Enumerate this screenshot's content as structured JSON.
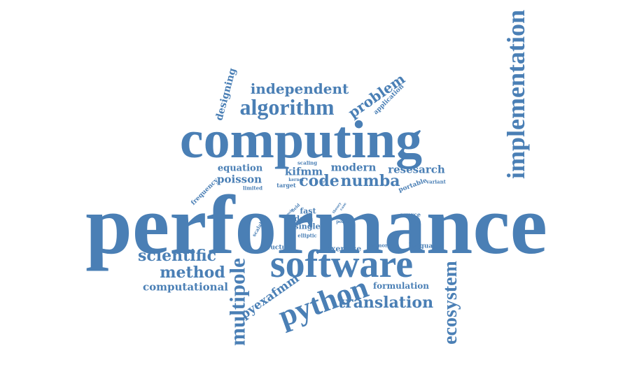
{
  "word_cloud": {
    "color": "#4a7fb5",
    "background": "#ffffff",
    "words": {
      "performance": "performance",
      "computing": "computing",
      "software": "software",
      "implementation": "implementation",
      "python": "python",
      "multipole": "multipole",
      "ecosystem": "ecosystem",
      "algorithm": "algorithm",
      "independent": "independent",
      "problem": "problem",
      "designing": "designing",
      "application": "application",
      "scientific": "scientific",
      "method": "method",
      "computational": "computational",
      "translation": "translation",
      "pyexafmm": "pyexafmm",
      "equation": "equation",
      "poisson": "poisson",
      "frequency": "frequency",
      "limited": "limited",
      "kifmm": "kifmm",
      "code": "code",
      "modern": "modern",
      "numba": "numba",
      "resesarch": "resesarch",
      "scaling": "scaling",
      "kernel": "kernel",
      "target": "target",
      "portable": "portable",
      "variant": "variant",
      "fast": "fast",
      "data": "data",
      "single": "single",
      "elliptic": "elliptic",
      "field": "field",
      "pole": "pole",
      "scalable": "scalable",
      "source": "source",
      "range": "range",
      "point": "point",
      "theory": "theory",
      "case": "case",
      "structure": "structure",
      "exercise": "exercise",
      "memory": "memory",
      "language": "language",
      "formulation": "formulation",
      "the": "the"
    }
  }
}
